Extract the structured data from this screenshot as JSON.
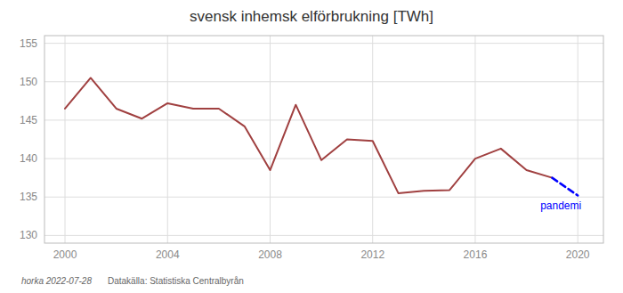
{
  "chart_data": {
    "type": "line",
    "title": "svensk inhemsk elförbrukning [TWh]",
    "x": [
      2000,
      2001,
      2002,
      2003,
      2004,
      2005,
      2006,
      2007,
      2008,
      2009,
      2010,
      2011,
      2012,
      2013,
      2014,
      2015,
      2016,
      2017,
      2018,
      2019,
      2020
    ],
    "series": [
      {
        "color": "#a04040",
        "line_style": "solid",
        "values": [
          146.5,
          150.5,
          146.5,
          145.2,
          147.2,
          146.5,
          146.5,
          144.2,
          138.5,
          147.0,
          139.8,
          142.5,
          142.3,
          135.5,
          135.8,
          135.9,
          140.0,
          141.3,
          138.5,
          137.5,
          null
        ]
      },
      {
        "color": "#0000ff",
        "line_style": "dashed",
        "values": [
          null,
          null,
          null,
          null,
          null,
          null,
          null,
          null,
          null,
          null,
          null,
          null,
          null,
          null,
          null,
          null,
          null,
          null,
          null,
          137.5,
          135.2
        ]
      }
    ],
    "annotations": [
      "pandemi"
    ],
    "footer": [
      "horka 2022-07-28",
      "Datakälla: Statistiska Centralbyrån"
    ],
    "xlim": [
      1999.2,
      2021.0
    ],
    "ylim": [
      129,
      156
    ],
    "xticks": [
      2000,
      2004,
      2008,
      2012,
      2016,
      2020
    ],
    "yticks": [
      130,
      135,
      140,
      145,
      150,
      155
    ],
    "grid": true
  }
}
